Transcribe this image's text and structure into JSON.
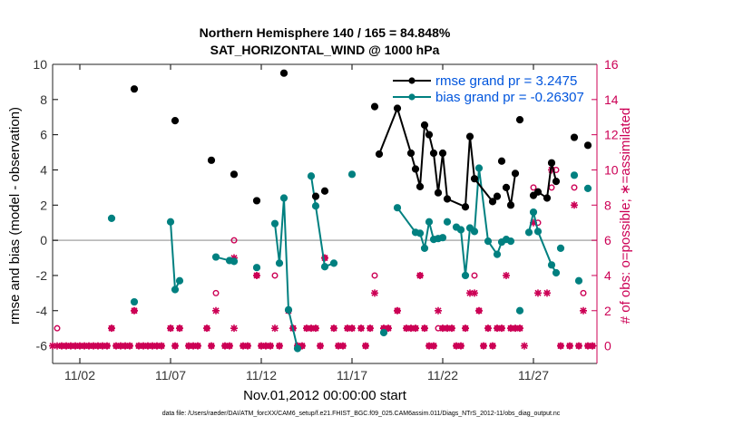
{
  "chart_data": {
    "type": "line",
    "title_line1": "Northern Hemisphere 140 / 165 = 84.848%",
    "title_line2": "SAT_HORIZONTAL_WIND @ 1000 hPa",
    "ylabel_left": "rmse and bias (model - observation)",
    "ylabel_right": "# of obs: o=possible; ∗=assimilated",
    "xlabel": "Nov.01,2012 00:00:00 start",
    "footer": "data file: /Users/raeder/DAI/ATM_forcXX/CAM6_setup/f.e21.FHIST_BGC.f09_025.CAM6assim.011/Diags_NTrS_2012-11/obs_diag_output.nc",
    "xlim": [
      0.5,
      30.5
    ],
    "ylim_left": [
      -7,
      10
    ],
    "ylim_right": [
      -1,
      16
    ],
    "yticks_left": [
      -6,
      -4,
      -2,
      0,
      2,
      4,
      6,
      8,
      10
    ],
    "yticks_right": [
      0,
      2,
      4,
      6,
      8,
      10,
      12,
      14,
      16
    ],
    "xticks": [
      {
        "x": 2,
        "label": "11/02"
      },
      {
        "x": 7,
        "label": "11/07"
      },
      {
        "x": 12,
        "label": "11/12"
      },
      {
        "x": 17,
        "label": "11/17"
      },
      {
        "x": 22,
        "label": "11/22"
      },
      {
        "x": 27,
        "label": "11/27"
      }
    ],
    "colors": {
      "rmse": "#000000",
      "bias": "#008080",
      "obs": "#cc0055",
      "zero": "#b0b0b0",
      "right_axis": "#cc0055"
    },
    "legend": [
      "rmse grand pr = 3.2475",
      "bias grand pr = -0.26307"
    ],
    "series": [
      {
        "name": "rmse",
        "points": [
          [
            5.0,
            8.6
          ],
          [
            7.25,
            6.8
          ],
          [
            9.25,
            4.55
          ],
          [
            10.5,
            3.75
          ],
          [
            11.75,
            2.25
          ],
          [
            13.25,
            9.5
          ],
          [
            15.0,
            2.5
          ],
          [
            15.5,
            2.8
          ],
          [
            18.25,
            7.6
          ],
          [
            18.5,
            4.9
          ],
          [
            19.5,
            7.5
          ],
          [
            20.25,
            4.95
          ],
          [
            20.5,
            4.05
          ],
          [
            20.75,
            3.05
          ],
          [
            21.0,
            6.55
          ],
          [
            21.25,
            6.0
          ],
          [
            21.5,
            4.95
          ],
          [
            21.75,
            2.7
          ],
          [
            22.0,
            4.95
          ],
          [
            22.25,
            2.35
          ],
          [
            23.25,
            1.9
          ],
          [
            23.5,
            5.9
          ],
          [
            23.75,
            3.5
          ],
          [
            24.75,
            2.2
          ],
          [
            25.0,
            2.5
          ],
          [
            25.25,
            4.5
          ],
          [
            25.5,
            3.0
          ],
          [
            25.75,
            2.0
          ],
          [
            26.0,
            3.8
          ],
          [
            26.25,
            6.85
          ],
          [
            27.0,
            2.55
          ],
          [
            27.25,
            2.75
          ],
          [
            27.75,
            2.4
          ],
          [
            28.0,
            4.4
          ],
          [
            28.25,
            3.35
          ],
          [
            29.25,
            5.85
          ],
          [
            30.0,
            5.4
          ]
        ],
        "segments": [
          [
            9,
            24
          ],
          [
            26,
            28
          ],
          [
            30,
            34
          ]
        ]
      },
      {
        "name": "bias",
        "points": [
          [
            3.75,
            1.25
          ],
          [
            5.0,
            -3.5
          ],
          [
            7.0,
            1.05
          ],
          [
            7.25,
            -2.8
          ],
          [
            7.5,
            -2.3
          ],
          [
            9.5,
            -0.95
          ],
          [
            10.25,
            -1.15
          ],
          [
            10.5,
            -1.2
          ],
          [
            11.75,
            -1.55
          ],
          [
            12.75,
            0.95
          ],
          [
            13.0,
            -1.3
          ],
          [
            13.25,
            2.4
          ],
          [
            13.5,
            -3.95
          ],
          [
            14.0,
            -6.15
          ],
          [
            14.75,
            3.65
          ],
          [
            15.0,
            1.95
          ],
          [
            15.5,
            -1.5
          ],
          [
            16.0,
            -1.3
          ],
          [
            17.0,
            3.75
          ],
          [
            18.75,
            -5.25
          ],
          [
            19.5,
            1.85
          ],
          [
            20.5,
            0.45
          ],
          [
            20.75,
            0.4
          ],
          [
            21.0,
            -0.45
          ],
          [
            21.25,
            1.05
          ],
          [
            21.5,
            0.05
          ],
          [
            21.75,
            0.1
          ],
          [
            22.0,
            0.15
          ],
          [
            22.25,
            1.05
          ],
          [
            22.75,
            0.75
          ],
          [
            23.0,
            0.6
          ],
          [
            23.25,
            -2.0
          ],
          [
            23.5,
            0.7
          ],
          [
            23.75,
            0.5
          ],
          [
            24.0,
            4.1
          ],
          [
            24.5,
            -0.05
          ],
          [
            25.0,
            -0.8
          ],
          [
            25.25,
            -0.1
          ],
          [
            25.5,
            0.05
          ],
          [
            25.75,
            -0.05
          ],
          [
            26.25,
            -4.0
          ],
          [
            26.75,
            0.45
          ],
          [
            27.0,
            1.6
          ],
          [
            27.25,
            0.5
          ],
          [
            28.0,
            -1.4
          ],
          [
            28.25,
            -1.85
          ],
          [
            28.5,
            -0.45
          ],
          [
            29.25,
            3.7
          ],
          [
            29.5,
            -2.3
          ],
          [
            30.0,
            2.95
          ]
        ],
        "segments": [
          [
            2,
            4
          ],
          [
            5,
            7
          ],
          [
            9,
            13
          ],
          [
            14,
            17
          ],
          [
            20,
            27
          ],
          [
            29,
            39
          ],
          [
            41,
            45
          ]
        ]
      },
      {
        "name": "obs_possible",
        "axis": "right",
        "points": [
          [
            0.75,
            1
          ],
          [
            1.0,
            0
          ],
          [
            1.25,
            0
          ],
          [
            1.5,
            0
          ],
          [
            1.75,
            0
          ],
          [
            2.0,
            0
          ],
          [
            2.25,
            0
          ],
          [
            2.5,
            0
          ],
          [
            2.75,
            0
          ],
          [
            3.0,
            0
          ],
          [
            3.25,
            0
          ],
          [
            3.5,
            0
          ],
          [
            3.75,
            1
          ],
          [
            4.0,
            0
          ],
          [
            4.25,
            0
          ],
          [
            4.5,
            0
          ],
          [
            4.75,
            0
          ],
          [
            5.0,
            2
          ],
          [
            5.25,
            0
          ],
          [
            5.5,
            0
          ],
          [
            5.75,
            0
          ],
          [
            6.0,
            0
          ],
          [
            6.25,
            0
          ],
          [
            6.5,
            0
          ],
          [
            7.0,
            1
          ],
          [
            7.25,
            0
          ],
          [
            7.5,
            1
          ],
          [
            8.0,
            0
          ],
          [
            8.25,
            0
          ],
          [
            8.5,
            0
          ],
          [
            9.0,
            1
          ],
          [
            9.25,
            0
          ],
          [
            9.5,
            3
          ],
          [
            10.0,
            0
          ],
          [
            10.25,
            0
          ],
          [
            10.5,
            6
          ],
          [
            11.0,
            0
          ],
          [
            11.25,
            0
          ],
          [
            11.75,
            4
          ],
          [
            12.0,
            0
          ],
          [
            12.25,
            0
          ],
          [
            12.5,
            0
          ],
          [
            12.75,
            4
          ],
          [
            13.0,
            0
          ],
          [
            13.5,
            2
          ],
          [
            13.75,
            1
          ],
          [
            14.0,
            0
          ],
          [
            14.25,
            0
          ],
          [
            14.5,
            1
          ],
          [
            14.75,
            1
          ],
          [
            15.0,
            1
          ],
          [
            15.25,
            0
          ],
          [
            15.5,
            5
          ],
          [
            16.0,
            1
          ],
          [
            16.25,
            0
          ],
          [
            16.5,
            0
          ],
          [
            16.75,
            1
          ],
          [
            17.0,
            1
          ],
          [
            17.5,
            1
          ],
          [
            17.75,
            0
          ],
          [
            18.0,
            1
          ],
          [
            18.25,
            4
          ],
          [
            18.75,
            1
          ],
          [
            19.0,
            1
          ],
          [
            19.5,
            2
          ],
          [
            20.0,
            1
          ],
          [
            20.25,
            1
          ],
          [
            20.5,
            1
          ],
          [
            20.75,
            4
          ],
          [
            21.0,
            1
          ],
          [
            21.25,
            0
          ],
          [
            21.5,
            0
          ],
          [
            21.75,
            1
          ],
          [
            22.0,
            1
          ],
          [
            22.25,
            1
          ],
          [
            22.5,
            1
          ],
          [
            22.75,
            0
          ],
          [
            23.0,
            0
          ],
          [
            23.25,
            1
          ],
          [
            23.75,
            4
          ],
          [
            24.0,
            2
          ],
          [
            24.25,
            0
          ],
          [
            24.5,
            1
          ],
          [
            24.75,
            0
          ],
          [
            25.0,
            1
          ],
          [
            25.25,
            1
          ],
          [
            25.75,
            1
          ],
          [
            26.0,
            1
          ],
          [
            26.25,
            1
          ],
          [
            27.0,
            9
          ],
          [
            27.25,
            7
          ],
          [
            28.0,
            9
          ],
          [
            28.25,
            10
          ],
          [
            28.5,
            0
          ],
          [
            29.0,
            0
          ],
          [
            29.25,
            9
          ],
          [
            29.5,
            0
          ],
          [
            29.75,
            3
          ],
          [
            30.0,
            0
          ],
          [
            30.25,
            0
          ]
        ]
      },
      {
        "name": "obs_assimilated",
        "axis": "right",
        "points": [
          [
            0.5,
            0
          ],
          [
            0.75,
            0
          ],
          [
            1.0,
            0
          ],
          [
            1.25,
            0
          ],
          [
            1.5,
            0
          ],
          [
            1.75,
            0
          ],
          [
            2.0,
            0
          ],
          [
            2.25,
            0
          ],
          [
            2.5,
            0
          ],
          [
            2.75,
            0
          ],
          [
            3.0,
            0
          ],
          [
            3.25,
            0
          ],
          [
            3.5,
            0
          ],
          [
            3.75,
            1
          ],
          [
            4.0,
            0
          ],
          [
            4.25,
            0
          ],
          [
            4.5,
            0
          ],
          [
            4.75,
            0
          ],
          [
            5.0,
            2
          ],
          [
            5.25,
            0
          ],
          [
            5.5,
            0
          ],
          [
            5.75,
            0
          ],
          [
            6.0,
            0
          ],
          [
            6.25,
            0
          ],
          [
            6.5,
            0
          ],
          [
            7.0,
            1
          ],
          [
            7.25,
            0
          ],
          [
            7.5,
            1
          ],
          [
            8.0,
            0
          ],
          [
            8.25,
            0
          ],
          [
            8.5,
            0
          ],
          [
            9.0,
            1
          ],
          [
            9.25,
            0
          ],
          [
            9.5,
            2
          ],
          [
            10.0,
            0
          ],
          [
            10.25,
            0
          ],
          [
            10.5,
            5
          ],
          [
            10.5,
            1
          ],
          [
            11.0,
            0
          ],
          [
            11.25,
            0
          ],
          [
            11.75,
            4
          ],
          [
            12.0,
            0
          ],
          [
            12.25,
            0
          ],
          [
            12.5,
            0
          ],
          [
            12.75,
            1
          ],
          [
            13.0,
            0
          ],
          [
            13.5,
            2
          ],
          [
            13.75,
            1
          ],
          [
            14.0,
            0
          ],
          [
            14.25,
            0
          ],
          [
            14.5,
            1
          ],
          [
            14.75,
            1
          ],
          [
            15.0,
            1
          ],
          [
            15.25,
            0
          ],
          [
            15.5,
            5
          ],
          [
            16.0,
            1
          ],
          [
            16.25,
            0
          ],
          [
            16.5,
            0
          ],
          [
            16.75,
            1
          ],
          [
            17.0,
            1
          ],
          [
            17.5,
            1
          ],
          [
            17.75,
            0
          ],
          [
            18.0,
            1
          ],
          [
            18.25,
            3
          ],
          [
            18.75,
            1
          ],
          [
            19.0,
            1
          ],
          [
            19.5,
            2
          ],
          [
            20.0,
            1
          ],
          [
            20.25,
            1
          ],
          [
            20.5,
            1
          ],
          [
            20.75,
            4
          ],
          [
            21.0,
            1
          ],
          [
            21.25,
            0
          ],
          [
            21.5,
            0
          ],
          [
            21.75,
            2
          ],
          [
            22.0,
            1
          ],
          [
            22.25,
            1
          ],
          [
            22.5,
            1
          ],
          [
            22.75,
            0
          ],
          [
            23.0,
            0
          ],
          [
            23.25,
            1
          ],
          [
            23.5,
            3
          ],
          [
            23.75,
            3
          ],
          [
            24.0,
            2
          ],
          [
            24.25,
            0
          ],
          [
            24.5,
            1
          ],
          [
            24.75,
            0
          ],
          [
            25.0,
            1
          ],
          [
            25.25,
            1
          ],
          [
            25.5,
            4
          ],
          [
            25.75,
            1
          ],
          [
            26.0,
            1
          ],
          [
            26.25,
            1
          ],
          [
            26.5,
            0
          ],
          [
            27.0,
            7
          ],
          [
            27.25,
            3
          ],
          [
            27.75,
            3
          ],
          [
            28.0,
            10
          ],
          [
            28.5,
            0
          ],
          [
            29.0,
            0
          ],
          [
            29.25,
            8
          ],
          [
            29.5,
            0
          ],
          [
            29.75,
            2
          ],
          [
            30.0,
            0
          ],
          [
            30.25,
            0
          ]
        ]
      }
    ]
  }
}
